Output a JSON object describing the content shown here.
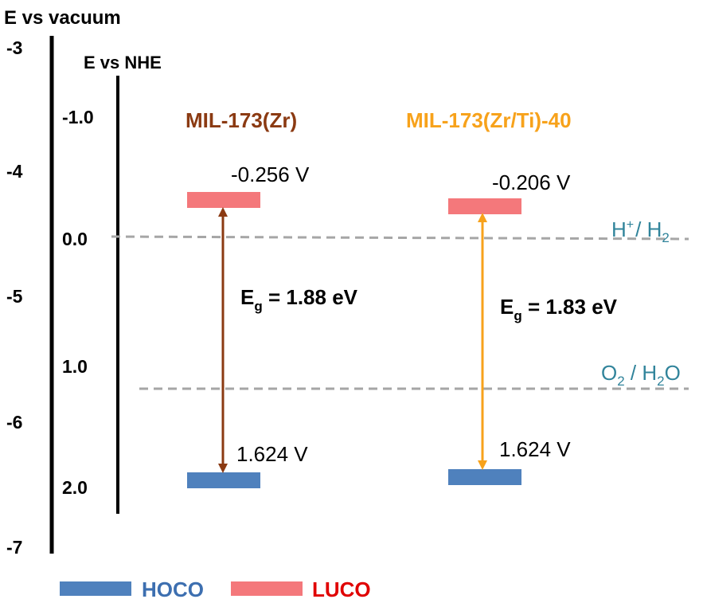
{
  "axes": {
    "vacuum": {
      "title": "E vs vacuum",
      "ticks": [
        "-3",
        "-4",
        "-5",
        "-6",
        "-7"
      ]
    },
    "nhe": {
      "title": "E vs NHE",
      "ticks": [
        "-1.0",
        "0.0",
        "1.0",
        "2.0"
      ]
    }
  },
  "references": [
    {
      "parts": [
        "H",
        "+",
        "/ H",
        "2"
      ]
    },
    {
      "parts": [
        "O",
        "2",
        " / H",
        "2",
        "O"
      ]
    }
  ],
  "materials": [
    {
      "name": "MIL-173(Zr)",
      "luco_label": "-0.256 V",
      "hoco_label": "1.624 V",
      "gap": {
        "symbol": "E",
        "subscript": "g",
        "text": " = 1.88 eV"
      }
    },
    {
      "name": "MIL-173(Zr/Ti)-40",
      "luco_label": "-0.206 V",
      "hoco_label": "1.624 V",
      "gap": {
        "symbol": "E",
        "subscript": "g",
        "text": " = 1.83 eV"
      }
    }
  ],
  "legend": [
    "HOCO",
    "LUCO"
  ]
}
